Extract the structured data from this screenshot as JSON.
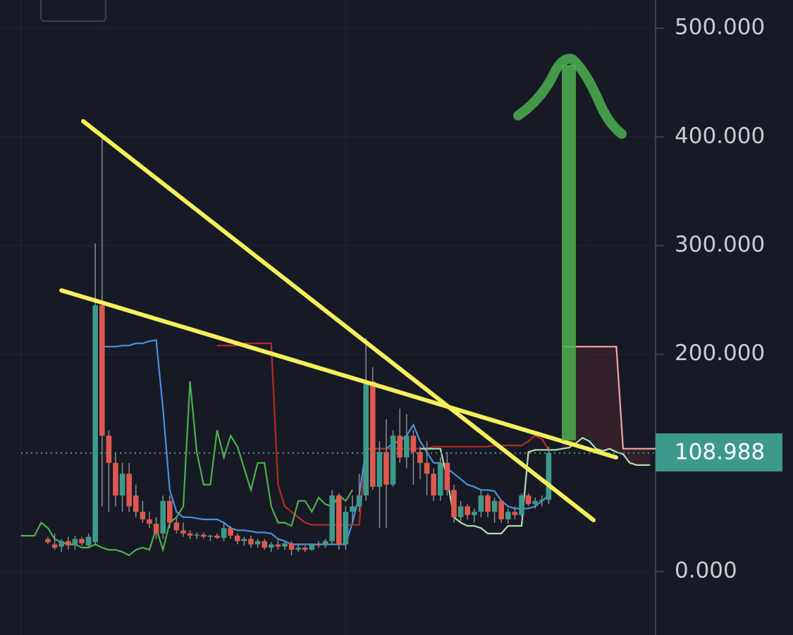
{
  "chart_data": {
    "type": "candlestick",
    "up_color": "#3d9a8a",
    "down_color": "#e0584e",
    "open": [
      null,
      null,
      null,
      null,
      30,
      25,
      23,
      28,
      24,
      30,
      24,
      27,
      245,
      125,
      100,
      70,
      90,
      70,
      55,
      48,
      44,
      35,
      65,
      45,
      38,
      35,
      33,
      34,
      32,
      33,
      31,
      40,
      33,
      28,
      30,
      25,
      28,
      22,
      25,
      23,
      26,
      20,
      22,
      20,
      25,
      24,
      28,
      70,
      25,
      55,
      60,
      70,
      175,
      78,
      110,
      80,
      125,
      105,
      125,
      110,
      100,
      90,
      70,
      100,
      75,
      50,
      60,
      52,
      55,
      70,
      55,
      65,
      48,
      55,
      52,
      70,
      62,
      65,
      66
    ],
    "high": [
      null,
      null,
      null,
      null,
      32,
      35,
      30,
      32,
      33,
      32,
      35,
      302,
      402,
      130,
      110,
      100,
      100,
      80,
      65,
      55,
      50,
      70,
      70,
      50,
      45,
      38,
      36,
      36,
      34,
      35,
      45,
      42,
      35,
      32,
      33,
      30,
      30,
      27,
      30,
      28,
      28,
      25,
      24,
      26,
      28,
      30,
      75,
      72,
      60,
      70,
      90,
      215,
      188,
      120,
      140,
      130,
      150,
      145,
      130,
      115,
      120,
      95,
      105,
      110,
      80,
      65,
      62,
      58,
      75,
      72,
      68,
      66,
      58,
      60,
      72,
      72,
      68,
      70,
      115
    ],
    "low": [
      null,
      null,
      null,
      null,
      25,
      20,
      18,
      20,
      20,
      24,
      22,
      25,
      60,
      55,
      60,
      55,
      55,
      50,
      45,
      40,
      30,
      30,
      40,
      35,
      32,
      30,
      30,
      30,
      28,
      30,
      28,
      30,
      25,
      24,
      22,
      22,
      20,
      18,
      20,
      20,
      15,
      18,
      18,
      19,
      22,
      22,
      25,
      20,
      20,
      45,
      55,
      65,
      75,
      40,
      40,
      78,
      100,
      95,
      80,
      85,
      70,
      65,
      65,
      70,
      45,
      45,
      48,
      45,
      50,
      50,
      45,
      45,
      44,
      48,
      50,
      60,
      58,
      60,
      62
    ],
    "close": [
      null,
      null,
      null,
      null,
      27,
      22,
      28,
      24,
      30,
      26,
      32,
      245,
      125,
      100,
      70,
      90,
      60,
      55,
      48,
      44,
      35,
      65,
      45,
      38,
      35,
      33,
      34,
      32,
      33,
      31,
      40,
      33,
      28,
      30,
      25,
      28,
      22,
      25,
      23,
      26,
      20,
      22,
      20,
      25,
      24,
      28,
      70,
      25,
      55,
      60,
      70,
      175,
      78,
      110,
      80,
      125,
      105,
      125,
      110,
      100,
      90,
      70,
      100,
      75,
      50,
      60,
      52,
      55,
      70,
      55,
      65,
      48,
      55,
      52,
      70,
      62,
      65,
      66,
      108.988
    ],
    "lines": [
      {
        "color": "#4a90e2",
        "values": [
          null,
          null,
          null,
          null,
          null,
          null,
          null,
          null,
          null,
          null,
          null,
          null,
          207,
          207,
          207,
          208,
          208,
          210,
          210,
          212,
          213,
          150,
          75,
          55,
          50,
          50,
          49,
          48,
          48,
          48,
          45,
          40,
          38,
          38,
          37,
          36,
          36,
          35,
          30,
          28,
          25,
          25,
          25,
          25,
          25,
          25,
          25,
          25,
          25,
          45,
          70,
          113,
          113,
          113,
          113,
          118,
          120,
          125,
          135,
          120,
          110,
          100,
          100,
          95,
          90,
          85,
          80,
          78,
          75,
          75,
          74,
          65,
          60,
          58,
          58,
          58,
          60,
          65,
          70
        ]
      },
      {
        "color": "#b52a2a",
        "values": [
          null,
          null,
          null,
          null,
          null,
          null,
          null,
          null,
          null,
          null,
          null,
          null,
          null,
          null,
          null,
          null,
          null,
          null,
          null,
          null,
          null,
          null,
          null,
          null,
          null,
          null,
          null,
          null,
          null,
          208,
          208,
          208,
          208,
          210,
          210,
          210,
          210,
          210,
          80,
          60,
          55,
          50,
          45,
          43,
          43,
          43,
          43,
          43,
          43,
          43,
          43,
          113,
          113,
          113,
          113,
          113,
          113,
          113,
          113,
          113,
          113,
          115,
          115,
          115,
          115,
          115,
          115,
          115,
          115,
          115,
          116,
          116,
          116,
          116,
          116,
          120,
          125,
          122,
          112
        ]
      },
      {
        "color": "#b5e0b0",
        "values": [
          null,
          null,
          null,
          null,
          null,
          null,
          null,
          null,
          null,
          null,
          null,
          null,
          null,
          null,
          null,
          null,
          null,
          null,
          null,
          null,
          null,
          null,
          null,
          null,
          null,
          null,
          null,
          null,
          null,
          null,
          null,
          null,
          null,
          null,
          null,
          null,
          null,
          null,
          null,
          null,
          null,
          null,
          null,
          null,
          null,
          null,
          null,
          null,
          null,
          null,
          null,
          null,
          null,
          null,
          null,
          null,
          null,
          null,
          null,
          113,
          113,
          113,
          113,
          85,
          50,
          45,
          42,
          42,
          40,
          35,
          35,
          35,
          42,
          42,
          42,
          110,
          112,
          112,
          112,
          112,
          113,
          114,
          118,
          123,
          120,
          113,
          111,
          113,
          110,
          108,
          100,
          98,
          98,
          98
        ]
      },
      {
        "color": "#f2a7a7",
        "values": [
          null,
          null,
          null,
          null,
          null,
          null,
          null,
          null,
          null,
          null,
          null,
          null,
          null,
          null,
          null,
          null,
          null,
          null,
          null,
          null,
          null,
          null,
          null,
          null,
          null,
          null,
          null,
          null,
          null,
          null,
          null,
          null,
          null,
          null,
          null,
          null,
          null,
          null,
          null,
          null,
          null,
          null,
          null,
          null,
          null,
          null,
          null,
          null,
          null,
          null,
          null,
          null,
          null,
          null,
          null,
          null,
          null,
          null,
          null,
          null,
          null,
          null,
          null,
          null,
          null,
          null,
          null,
          null,
          null,
          null,
          null,
          null,
          null,
          null,
          null,
          null,
          null,
          null,
          null,
          null,
          207,
          207,
          207,
          207,
          207,
          207,
          207,
          207,
          207,
          113,
          113,
          113,
          113,
          113,
          113
        ]
      },
      {
        "color": "#4caf50",
        "values": [
          33,
          33,
          33,
          45,
          40,
          30,
          27,
          25,
          25,
          22,
          22,
          25,
          22,
          20,
          20,
          18,
          15,
          20,
          22,
          20,
          40,
          20,
          45,
          50,
          60,
          175,
          110,
          80,
          80,
          130,
          105,
          125,
          115,
          95,
          75,
          100,
          100,
          60,
          45,
          45,
          42,
          65,
          65,
          55,
          68,
          62,
          60,
          70,
          65,
          75
        ]
      }
    ],
    "ylim": [
      -58.4,
      526
    ],
    "yticks": [
      {
        "value": 0,
        "label": "0.000"
      },
      {
        "value": 200,
        "label": "200.000"
      },
      {
        "value": 300,
        "label": "300.000"
      },
      {
        "value": 400,
        "label": "400.000"
      },
      {
        "value": 500,
        "label": "500.000"
      }
    ],
    "grid": true
  }
}
